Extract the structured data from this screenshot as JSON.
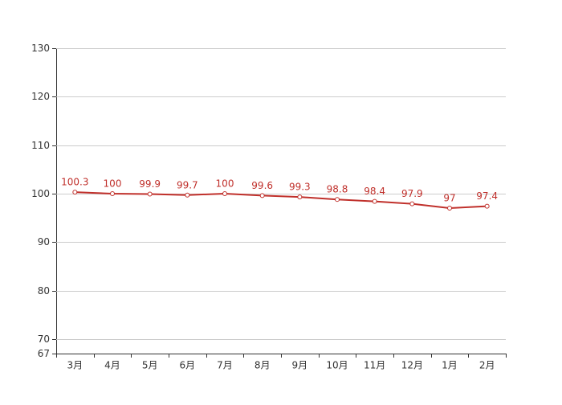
{
  "chart_data": {
    "type": "line",
    "categories": [
      "3月",
      "4月",
      "5月",
      "6月",
      "7月",
      "8月",
      "9月",
      "10月",
      "11月",
      "12月",
      "1月",
      "2月"
    ],
    "values": [
      100.3,
      100,
      99.9,
      99.7,
      100,
      99.6,
      99.3,
      98.8,
      98.4,
      97.9,
      97,
      97.4
    ],
    "color": "#c0302b",
    "ylim": [
      67,
      130
    ],
    "yticks": [
      67,
      70,
      80,
      90,
      100,
      110,
      120,
      130
    ],
    "grid": true
  }
}
